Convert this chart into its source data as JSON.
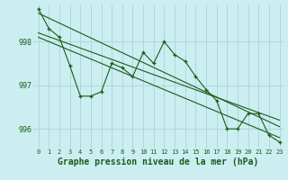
{
  "background_color": "#cceef0",
  "grid_color": "#aad4d8",
  "line_color": "#1a5c1a",
  "marker_color": "#1a5c1a",
  "xlabel": "Graphe pression niveau de la mer (hPa)",
  "xlabel_fontsize": 7,
  "xlim_min": -0.5,
  "xlim_max": 23.4,
  "ylim_min": 995.55,
  "ylim_max": 998.85,
  "yticks": [
    996,
    997,
    998
  ],
  "xticks": [
    0,
    1,
    2,
    3,
    4,
    5,
    6,
    7,
    8,
    9,
    10,
    11,
    12,
    13,
    14,
    15,
    16,
    17,
    18,
    19,
    20,
    21,
    22,
    23
  ],
  "series1": [
    998.75,
    998.3,
    998.1,
    997.45,
    996.75,
    996.75,
    996.85,
    997.5,
    997.4,
    997.2,
    997.75,
    997.5,
    998.0,
    997.7,
    997.55,
    997.2,
    996.9,
    996.65,
    996.0,
    996.0,
    996.35,
    996.35,
    995.85,
    995.7
  ],
  "series2_x": [
    0,
    23
  ],
  "series2_y": [
    998.65,
    996.05
  ],
  "series3_x": [
    0,
    23
  ],
  "series3_y": [
    998.1,
    995.8
  ],
  "series4_x": [
    0,
    23
  ],
  "series4_y": [
    998.2,
    996.2
  ]
}
